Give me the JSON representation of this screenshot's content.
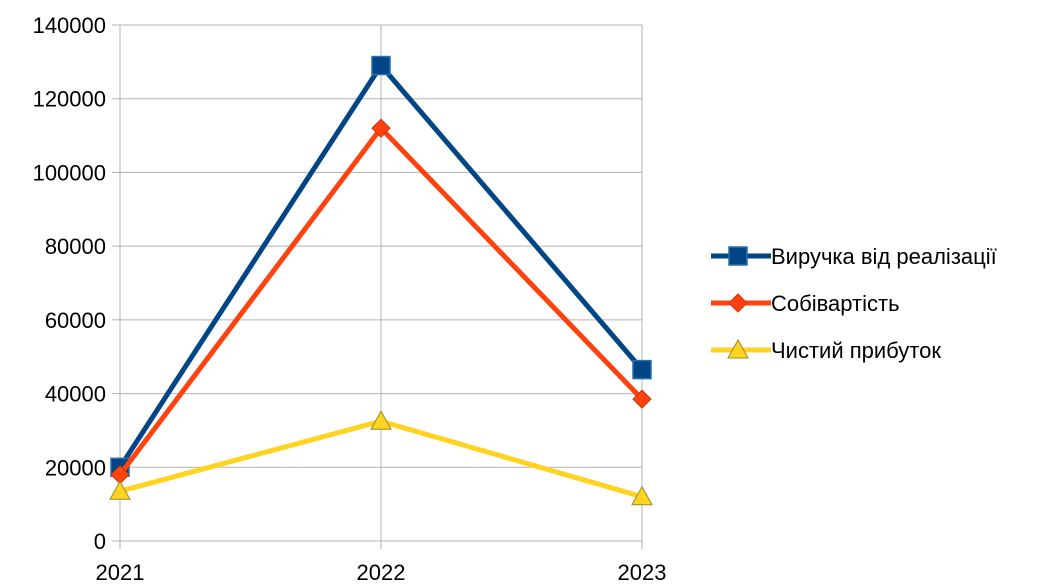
{
  "chart_data": {
    "type": "line",
    "categories": [
      "2021",
      "2022",
      "2023"
    ],
    "series": [
      {
        "name": "Виручка від реалізації",
        "values": [
          20000,
          129000,
          46500
        ],
        "color": "#004586",
        "marker": "square"
      },
      {
        "name": "Собівартість",
        "values": [
          18000,
          112000,
          38500
        ],
        "color": "#FF420E",
        "marker": "diamond"
      },
      {
        "name": "Чистий прибуток",
        "values": [
          13500,
          32500,
          12000
        ],
        "color": "#FFD320",
        "marker": "triangle"
      }
    ],
    "ylim": [
      0,
      140000
    ],
    "yticks": [
      0,
      20000,
      40000,
      60000,
      80000,
      100000,
      120000,
      140000
    ],
    "grid": true,
    "legend": "right"
  }
}
